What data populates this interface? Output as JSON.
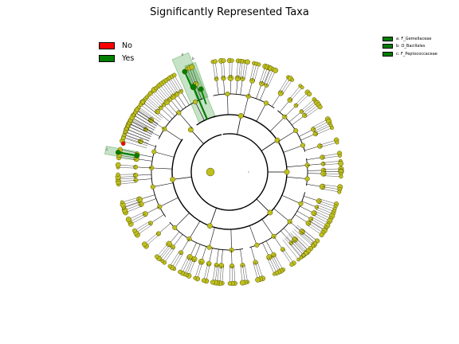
{
  "title": "Significantly Represented Taxa",
  "legend": [
    {
      "label": "No",
      "color": "#ff0000"
    },
    {
      "label": "Yes",
      "color": "#007f00"
    }
  ],
  "clade_legend": [
    {
      "label": "a: F_Gemellaceae",
      "color": "#007f00"
    },
    {
      "label": "b: O_Bacillales",
      "color": "#007f00"
    },
    {
      "label": "c: F_Peptococcaceae",
      "color": "#007f00"
    }
  ],
  "clade_tags": {
    "a": "a",
    "b": "b",
    "c": "c"
  },
  "colors": {
    "node_default": "#bfbf1f",
    "node_edge": "#555500",
    "node_highlight": "#007f00",
    "node_no": "#ff0000",
    "highlight_band": "#007f00",
    "branch": "#000000"
  }
}
